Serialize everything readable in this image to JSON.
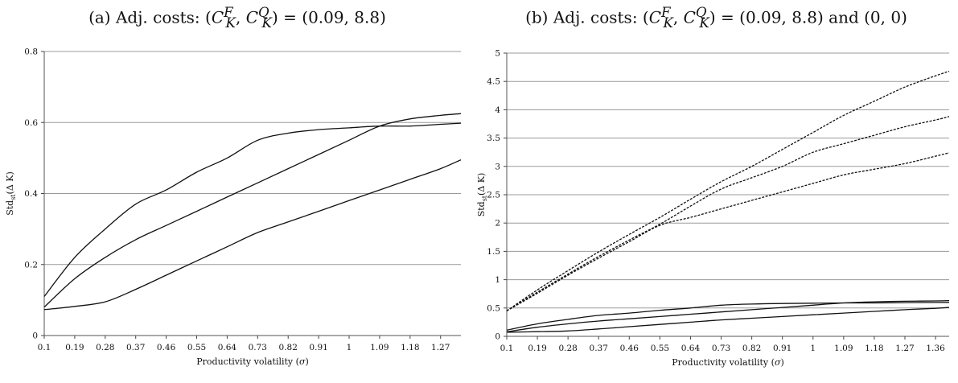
{
  "chart_data": [
    {
      "type": "line",
      "title": "(a) Adj. costs: (C_K^F, C_K^Q) = (0.09, 8.8)",
      "xlabel": "Productivity volatility (σ)",
      "ylabel": "Std_st(Δ K)",
      "x_ticks": [
        "0.1",
        "0.19",
        "0.28",
        "0.37",
        "0.46",
        "0.55",
        "0.64",
        "0.73",
        "0.82",
        "0.91",
        "1",
        "1.09",
        "1.18",
        "1.27"
      ],
      "y_ticks": [
        "0",
        "0.2",
        "0.4",
        "0.6",
        "0.8"
      ],
      "xlim": [
        0.1,
        1.33
      ],
      "ylim": [
        0,
        0.8
      ],
      "grid": "horizontal",
      "x": [
        0.1,
        0.19,
        0.28,
        0.37,
        0.46,
        0.55,
        0.64,
        0.73,
        0.82,
        0.91,
        1.0,
        1.09,
        1.18,
        1.27,
        1.33
      ],
      "series": [
        {
          "style": "solid",
          "values": [
            0.11,
            0.22,
            0.3,
            0.37,
            0.41,
            0.46,
            0.5,
            0.55,
            0.57,
            0.58,
            0.585,
            0.59,
            0.59,
            0.595,
            0.598
          ]
        },
        {
          "style": "solid",
          "values": [
            0.08,
            0.16,
            0.22,
            0.27,
            0.31,
            0.35,
            0.39,
            0.43,
            0.47,
            0.51,
            0.55,
            0.59,
            0.61,
            0.62,
            0.625
          ]
        },
        {
          "style": "solid",
          "values": [
            0.073,
            0.082,
            0.095,
            0.13,
            0.17,
            0.21,
            0.25,
            0.29,
            0.32,
            0.35,
            0.38,
            0.41,
            0.44,
            0.47,
            0.495
          ]
        }
      ]
    },
    {
      "type": "line",
      "title": "(b) Adj. costs: (C_K^F, C_K^Q) = (0.09, 8.8) and (0, 0)",
      "xlabel": "Productivity volatility (σ)",
      "ylabel": "Std_st(Δ K)",
      "x_ticks": [
        "0.1",
        "0.19",
        "0.28",
        "0.37",
        "0.46",
        "0.55",
        "0.64",
        "0.73",
        "0.82",
        "0.91",
        "1",
        "1.09",
        "1.18",
        "1.27",
        "1.36"
      ],
      "y_ticks": [
        "0",
        "0.5",
        "1",
        "1.5",
        "2",
        "2.5",
        "3",
        "3.5",
        "4",
        "4.5",
        "5"
      ],
      "xlim": [
        0.1,
        1.4
      ],
      "ylim": [
        0,
        5
      ],
      "grid": "horizontal",
      "x": [
        0.1,
        0.19,
        0.28,
        0.37,
        0.46,
        0.55,
        0.64,
        0.73,
        0.82,
        0.91,
        1.0,
        1.09,
        1.18,
        1.27,
        1.36,
        1.4
      ],
      "series": [
        {
          "style": "dashed",
          "values": [
            0.45,
            0.82,
            1.16,
            1.49,
            1.8,
            2.1,
            2.42,
            2.73,
            3.0,
            3.3,
            3.6,
            3.9,
            4.15,
            4.4,
            4.6,
            4.68
          ]
        },
        {
          "style": "dashed",
          "values": [
            0.45,
            0.78,
            1.1,
            1.41,
            1.7,
            1.98,
            2.3,
            2.6,
            2.8,
            3.0,
            3.25,
            3.4,
            3.55,
            3.7,
            3.82,
            3.88
          ]
        },
        {
          "style": "dashed",
          "values": [
            0.45,
            0.76,
            1.08,
            1.38,
            1.67,
            1.96,
            2.1,
            2.25,
            2.4,
            2.55,
            2.7,
            2.85,
            2.95,
            3.05,
            3.18,
            3.24
          ]
        },
        {
          "style": "solid",
          "values": [
            0.11,
            0.22,
            0.3,
            0.37,
            0.41,
            0.46,
            0.5,
            0.55,
            0.57,
            0.58,
            0.585,
            0.59,
            0.59,
            0.595,
            0.598,
            0.6
          ]
        },
        {
          "style": "solid",
          "values": [
            0.08,
            0.16,
            0.22,
            0.27,
            0.31,
            0.35,
            0.39,
            0.43,
            0.47,
            0.51,
            0.55,
            0.59,
            0.61,
            0.62,
            0.625,
            0.63
          ]
        },
        {
          "style": "solid",
          "values": [
            0.073,
            0.082,
            0.095,
            0.13,
            0.17,
            0.21,
            0.25,
            0.29,
            0.32,
            0.35,
            0.38,
            0.41,
            0.44,
            0.47,
            0.495,
            0.51
          ]
        }
      ]
    }
  ]
}
